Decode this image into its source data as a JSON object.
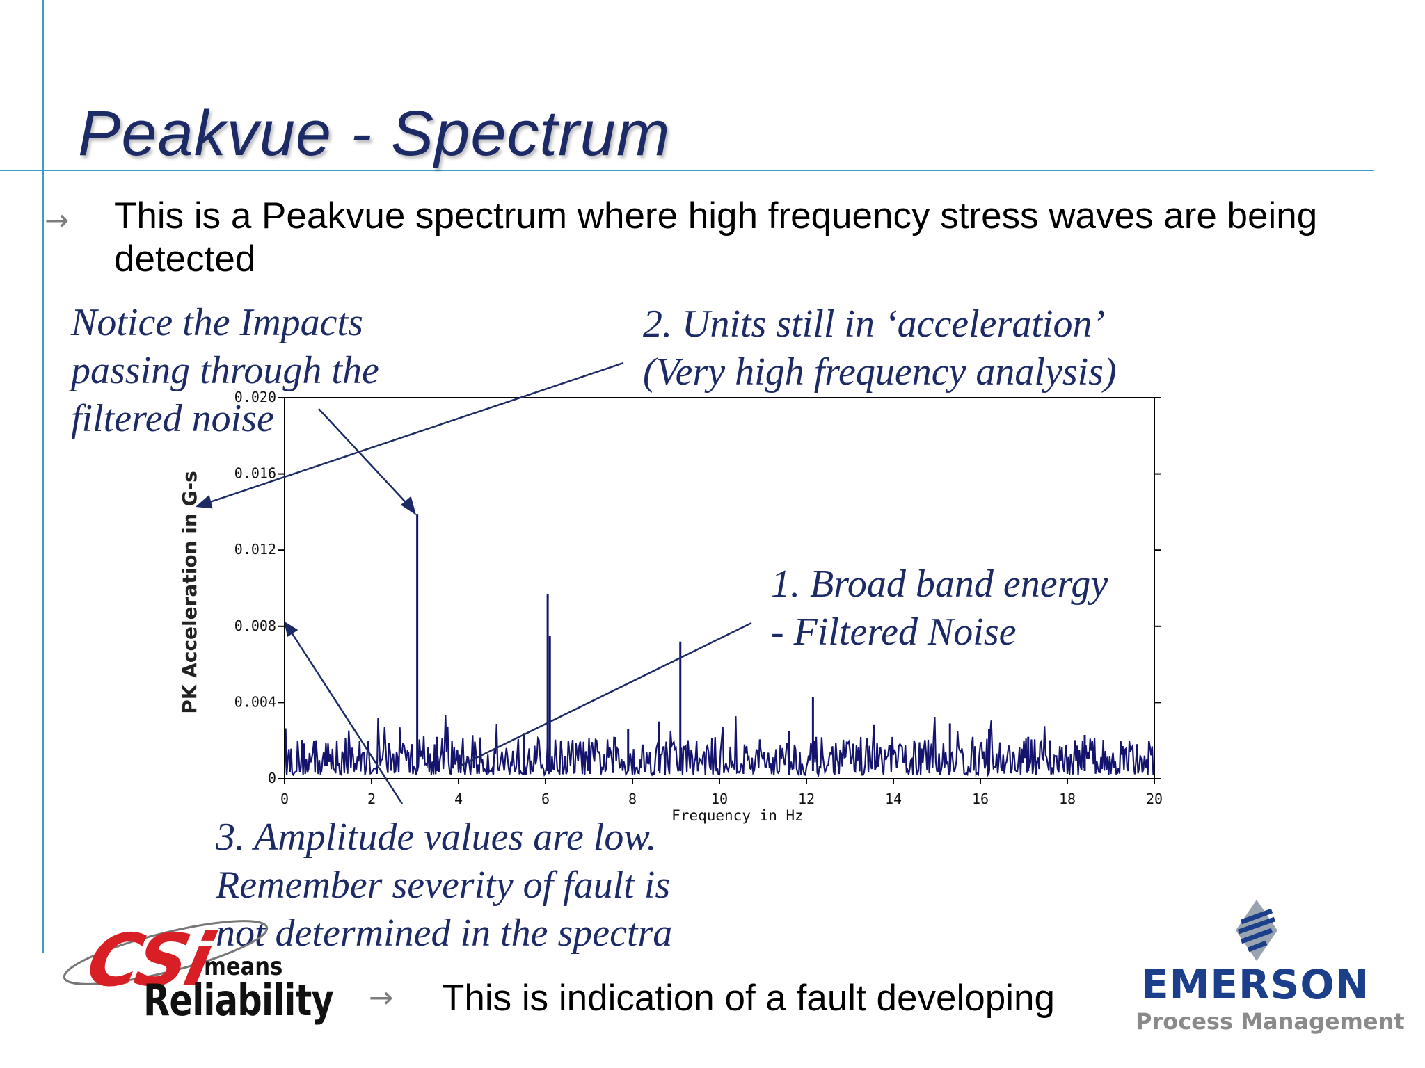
{
  "slide": {
    "title": "Peakvue - Spectrum",
    "bullet_text": "This is a Peakvue spectrum where high frequency stress waves are being detected",
    "bottom_bullet": "This is indication of a fault developing",
    "bullet_icon": "arrow-right-icon"
  },
  "annotations": {
    "impacts": [
      "Notice the Impacts",
      "passing through the",
      "filtered noise"
    ],
    "units": [
      "2. Units still in ‘acceleration’",
      "(Very high frequency analysis)"
    ],
    "broadband": [
      "1. Broad band energy",
      "- Filtered Noise"
    ],
    "amplitude": [
      "3. Amplitude values are low.",
      "Remember severity of fault is",
      "not determined in the spectra"
    ]
  },
  "logos": {
    "csi_mark": "CSi",
    "csi_means": "means",
    "csi_reliability": "Reliability",
    "emerson_name": "EMERSON",
    "emerson_sub": "Process Management"
  },
  "colors": {
    "title": "#1c2a66",
    "annotation": "#1c2a66",
    "spectrum": "#14146e",
    "rule": "#3a9ec9",
    "csi_red": "#d81f26",
    "emerson_blue": "#1c3f8c"
  },
  "chart_data": {
    "type": "line",
    "title": "",
    "xlabel": "Frequency in Hz",
    "ylabel": "PK Acceleration in G-s",
    "xlim": [
      0,
      20
    ],
    "ylim": [
      0,
      0.02
    ],
    "x_ticks": [
      "0",
      "2",
      "4",
      "6",
      "8",
      "10",
      "12",
      "14",
      "16",
      "18",
      "20"
    ],
    "y_ticks": [
      "0",
      "0.004",
      "0.008",
      "0.012",
      "0.016",
      "0.020"
    ],
    "grid": false,
    "noise_floor": {
      "range": [
        0.0002,
        0.0022
      ],
      "typical": 0.0008
    },
    "peaks": [
      {
        "x": 3.05,
        "y": 0.0139
      },
      {
        "x": 6.05,
        "y": 0.0097
      },
      {
        "x": 6.1,
        "y": 0.0075
      },
      {
        "x": 9.1,
        "y": 0.0072
      },
      {
        "x": 12.15,
        "y": 0.0043
      },
      {
        "x": 8.6,
        "y": 0.003
      },
      {
        "x": 5.5,
        "y": 0.0024
      },
      {
        "x": 11.6,
        "y": 0.0025
      },
      {
        "x": 15.3,
        "y": 0.0029
      },
      {
        "x": 16.2,
        "y": 0.0026
      },
      {
        "x": 17.1,
        "y": 0.0022
      },
      {
        "x": 18.4,
        "y": 0.0023
      },
      {
        "x": 3.5,
        "y": 0.0022
      },
      {
        "x": 7.9,
        "y": 0.0026
      }
    ]
  }
}
